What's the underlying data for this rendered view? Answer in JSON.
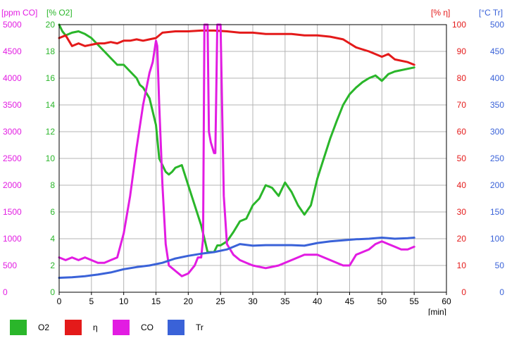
{
  "chart_data": {
    "type": "line",
    "x_unit_label": "[min]",
    "x_ticks": [
      0,
      5,
      10,
      15,
      20,
      25,
      30,
      35,
      40,
      45,
      50,
      55,
      60
    ],
    "xlim": [
      0,
      60
    ],
    "grid": true,
    "legend_position": "bottom",
    "axes": [
      {
        "id": "co",
        "label": "[ppm CO]",
        "side": "left",
        "lim": [
          0,
          5000
        ],
        "ticks": [
          0,
          500,
          1000,
          1500,
          2000,
          2500,
          3000,
          3500,
          4000,
          4500,
          5000
        ],
        "color": "#e21ce2"
      },
      {
        "id": "o2",
        "label": "[% O2]",
        "side": "left",
        "lim": [
          0,
          20
        ],
        "ticks": [
          0,
          2,
          4,
          6,
          8,
          10,
          12,
          14,
          16,
          18,
          20
        ],
        "color": "#2ab62a"
      },
      {
        "id": "eta",
        "label": "[% η]",
        "side": "right",
        "lim": [
          0,
          100
        ],
        "ticks": [
          0,
          10,
          20,
          30,
          40,
          50,
          60,
          70,
          80,
          90,
          100
        ],
        "color": "#e41a1a"
      },
      {
        "id": "tr",
        "label": "[°C Tr]",
        "side": "right",
        "lim": [
          0,
          500
        ],
        "ticks": [
          0,
          50,
          100,
          150,
          200,
          250,
          300,
          350,
          400,
          450,
          500
        ],
        "color": "#3a62d8"
      }
    ],
    "series": [
      {
        "name": "O2",
        "axis": "o2",
        "color": "#2ab62a",
        "x": [
          0,
          0.5,
          1,
          2,
          3,
          4,
          5,
          6,
          7,
          8,
          9,
          10,
          11,
          12,
          12.5,
          13,
          14,
          15,
          15.5,
          16,
          16.5,
          17,
          17.5,
          18,
          19,
          20,
          21,
          22,
          22.5,
          23,
          24,
          24.5,
          25,
          26,
          27,
          28,
          29,
          30,
          31,
          32,
          33,
          34,
          35,
          36,
          37,
          38,
          39,
          40,
          41,
          42,
          43,
          44,
          45,
          46,
          47,
          48,
          49,
          50,
          51,
          52,
          53,
          54,
          55
        ],
        "y": [
          20,
          19.5,
          19.2,
          19.4,
          19.5,
          19.3,
          19,
          18.5,
          18,
          17.5,
          17,
          17,
          16.5,
          16,
          15.5,
          15.3,
          14.5,
          12.5,
          10,
          9.5,
          9,
          8.8,
          9,
          9.3,
          9.5,
          8,
          6.5,
          5,
          4,
          3,
          3,
          3.5,
          3.5,
          3.8,
          4.5,
          5.3,
          5.5,
          6.5,
          7,
          8,
          7.8,
          7.2,
          8.2,
          7.5,
          6.5,
          5.8,
          6.5,
          8.5,
          10,
          11.5,
          12.8,
          14,
          14.8,
          15.3,
          15.7,
          16,
          16.2,
          15.8,
          16.3,
          16.5,
          16.6,
          16.7,
          16.8
        ]
      },
      {
        "name": "η",
        "axis": "eta",
        "color": "#e41a1a",
        "x": [
          0,
          1,
          2,
          3,
          4,
          5,
          6,
          7,
          8,
          9,
          10,
          11,
          12,
          13,
          14,
          15,
          16,
          18,
          20,
          22,
          24,
          26,
          28,
          30,
          32,
          34,
          36,
          38,
          40,
          42,
          44,
          45,
          46,
          48,
          50,
          51,
          52,
          54,
          55
        ],
        "y": [
          95,
          96,
          92,
          93,
          92,
          92.5,
          93,
          93,
          93.5,
          93,
          94,
          94,
          94.5,
          94,
          94.5,
          95,
          97,
          97.5,
          97.5,
          97.8,
          97.8,
          97.5,
          97,
          97,
          96.5,
          96.5,
          96.5,
          96,
          96,
          95.5,
          94.5,
          93,
          91.5,
          90,
          88,
          89,
          87,
          86,
          85
        ]
      },
      {
        "name": "CO",
        "axis": "co",
        "color": "#e21ce2",
        "x": [
          0,
          1,
          2,
          3,
          4,
          5,
          6,
          7,
          8,
          9,
          10,
          11,
          12,
          13,
          14,
          14.5,
          15,
          15.2,
          15.5,
          16,
          16.5,
          17,
          18,
          19,
          20,
          21,
          21.5,
          22,
          22.3,
          22.5,
          22.7,
          23,
          23.2,
          23.5,
          24,
          24.2,
          24.5,
          24.7,
          25,
          25.5,
          26,
          27,
          28,
          29,
          30,
          32,
          34,
          36,
          38,
          40,
          42,
          44,
          45,
          46,
          47,
          48,
          49,
          50,
          51,
          52,
          53,
          54,
          55
        ],
        "y": [
          650,
          600,
          650,
          600,
          650,
          600,
          550,
          550,
          600,
          650,
          1100,
          1800,
          2700,
          3500,
          4100,
          4300,
          4700,
          4600,
          3500,
          2000,
          900,
          500,
          400,
          300,
          350,
          500,
          650,
          650,
          1000,
          5000,
          5000,
          5000,
          3000,
          2800,
          2600,
          2600,
          5000,
          5000,
          5000,
          1800,
          900,
          700,
          600,
          550,
          500,
          450,
          500,
          600,
          700,
          700,
          600,
          500,
          500,
          700,
          750,
          800,
          900,
          950,
          900,
          850,
          800,
          800,
          850
        ]
      },
      {
        "name": "Tr",
        "axis": "tr",
        "color": "#3a62d8",
        "x": [
          0,
          2,
          4,
          6,
          8,
          10,
          12,
          14,
          16,
          18,
          20,
          22,
          24,
          26,
          28,
          30,
          32,
          34,
          36,
          38,
          40,
          42,
          44,
          46,
          48,
          50,
          52,
          54,
          55
        ],
        "y": [
          27,
          28,
          30,
          33,
          37,
          43,
          47,
          50,
          55,
          63,
          68,
          72,
          75,
          80,
          90,
          87,
          88,
          88,
          88,
          87,
          92,
          95,
          97,
          99,
          100,
          102,
          100,
          101,
          102
        ]
      }
    ],
    "legend": [
      {
        "label": "O2",
        "color": "#2ab62a"
      },
      {
        "label": "η",
        "color": "#e41a1a"
      },
      {
        "label": "CO",
        "color": "#e21ce2"
      },
      {
        "label": "Tr",
        "color": "#3a62d8"
      }
    ]
  }
}
